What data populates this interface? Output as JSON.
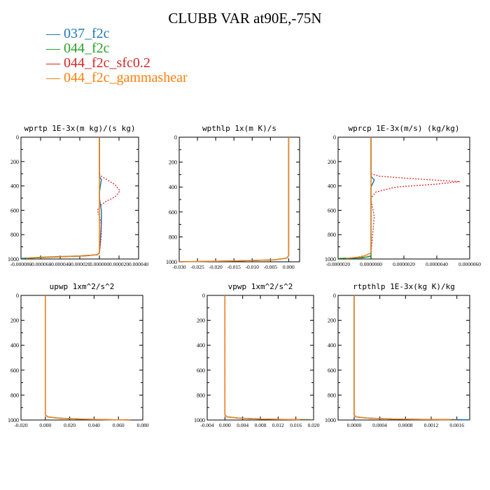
{
  "title": "CLUBB VAR at90E,-75N",
  "legend": [
    {
      "label": "037_f2c",
      "color": "#1f77b4"
    },
    {
      "label": "044_f2c",
      "color": "#2ca02c"
    },
    {
      "label": "044_f2c_sfc0.2",
      "color": "#d62728"
    },
    {
      "label": "044_f2c_gammashear",
      "color": "#ff7f0e"
    }
  ],
  "chart_data": [
    {
      "type": "line",
      "title": "wprtp  1E-3x(m kg)/(s kg)",
      "xlim": [
        -8e-05,
        4e-05
      ],
      "ylim": [
        1000,
        0
      ],
      "xticks": [
        "-0.000080",
        "-0.000060",
        "-0.000040",
        "-0.000020",
        "0.000000",
        "0.000020",
        "0.000040"
      ],
      "yticks": [
        "0",
        "200",
        "400",
        "600",
        "800",
        "1000"
      ],
      "series": [
        {
          "name": "037_f2c",
          "x": [
            0,
            0,
            0,
            2e-06,
            1e-06,
            0,
            0,
            2e-06,
            2e-06,
            1e-06,
            0,
            -2e-06,
            -1.5e-05,
            -5e-05,
            -8e-05
          ],
          "y": [
            0,
            300,
            320,
            350,
            400,
            450,
            500,
            600,
            700,
            850,
            950,
            965,
            975,
            985,
            995
          ]
        },
        {
          "name": "044_f2c",
          "x": [
            0,
            0,
            0,
            0,
            0,
            0,
            0,
            0,
            0,
            -2e-06,
            -2e-05,
            -6e-05,
            -7.8e-05
          ],
          "y": [
            0,
            300,
            350,
            400,
            500,
            600,
            700,
            850,
            950,
            965,
            975,
            985,
            995
          ]
        },
        {
          "name": "044_f2c_sfc0.2",
          "x": [
            0,
            0,
            2e-06,
            8e-06,
            1.6e-05,
            2.1e-05,
            1.6e-05,
            6e-06,
            0,
            -2e-06,
            0,
            2e-06,
            2e-06,
            1e-06,
            0,
            -3e-06,
            -2e-05,
            -6e-05
          ],
          "y": [
            0,
            300,
            320,
            350,
            390,
            440,
            490,
            530,
            570,
            600,
            650,
            720,
            800,
            880,
            950,
            965,
            975,
            990
          ]
        },
        {
          "name": "044_f2c_gammashear",
          "x": [
            0,
            0,
            0,
            0,
            0,
            0,
            0,
            -2e-06,
            -1.5e-05,
            -5e-05,
            -7.5e-05
          ],
          "y": [
            0,
            300,
            400,
            500,
            700,
            900,
            950,
            965,
            975,
            985,
            995
          ]
        }
      ]
    },
    {
      "type": "line",
      "title": "wpthlp  1x(m K)/s",
      "xlim": [
        -0.03,
        0.003
      ],
      "ylim": [
        1000,
        0
      ],
      "xticks": [
        "-0.030",
        "-0.025",
        "-0.020",
        "-0.015",
        "-0.010",
        "-0.005",
        "0.000"
      ],
      "yticks": [
        "0",
        "200",
        "400",
        "600",
        "800",
        "1000"
      ],
      "series": [
        {
          "name": "037_f2c",
          "x": [
            0,
            0,
            0,
            -0.0005,
            -0.004,
            -0.015,
            -0.03
          ],
          "y": [
            0,
            900,
            950,
            970,
            985,
            993,
            1000
          ]
        },
        {
          "name": "044_f2c",
          "x": [
            0,
            0,
            0,
            -0.0005,
            -0.004,
            -0.015,
            -0.03
          ],
          "y": [
            0,
            900,
            950,
            970,
            985,
            993,
            1000
          ]
        },
        {
          "name": "044_f2c_sfc0.2",
          "x": [
            0,
            0,
            0,
            -0.0005,
            -0.004,
            -0.015,
            -0.03
          ],
          "y": [
            0,
            900,
            950,
            970,
            985,
            993,
            1000
          ]
        },
        {
          "name": "044_f2c_gammashear",
          "x": [
            0,
            0,
            0,
            -0.0005,
            -0.004,
            -0.015,
            -0.03
          ],
          "y": [
            0,
            900,
            950,
            970,
            985,
            993,
            1000
          ]
        }
      ]
    },
    {
      "type": "line",
      "title": "wprcp  1E-3x(m/s) (kg/kg)",
      "xlim": [
        -2e-06,
        6e-06
      ],
      "ylim": [
        1000,
        0
      ],
      "xticks": [
        "-0.0000020",
        "0.0000000",
        "0.0000020",
        "0.0000040",
        "0.0000060"
      ],
      "yticks": [
        "0",
        "200",
        "400",
        "600",
        "800",
        "1000"
      ],
      "series": [
        {
          "name": "037_f2c",
          "x": [
            0,
            0,
            0,
            5e-08,
            2e-07,
            1e-07,
            0,
            0,
            0,
            0,
            -5e-07,
            -1.5e-06
          ],
          "y": [
            0,
            300,
            320,
            330,
            350,
            380,
            410,
            700,
            950,
            975,
            990,
            995
          ]
        },
        {
          "name": "044_f2c",
          "x": [
            0,
            0,
            0,
            0,
            -8e-07,
            -2e-06
          ],
          "y": [
            0,
            900,
            960,
            980,
            990,
            995
          ]
        },
        {
          "name": "044_f2c_sfc0.2",
          "x": [
            0,
            0,
            5e-07,
            2.5e-06,
            5.4e-06,
            4e-06,
            1.5e-06,
            3e-07,
            0,
            5e-08,
            2e-07,
            1e-07,
            0,
            -3e-07,
            -1e-06
          ],
          "y": [
            0,
            300,
            320,
            340,
            365,
            385,
            410,
            450,
            500,
            550,
            650,
            800,
            950,
            970,
            990
          ]
        },
        {
          "name": "044_f2c_gammashear",
          "x": [
            0,
            0,
            0,
            0,
            0,
            -5e-07,
            -1.5e-06
          ],
          "y": [
            0,
            300,
            400,
            700,
            950,
            980,
            995
          ]
        }
      ]
    },
    {
      "type": "line",
      "title": "upwp  1xm^2/s^2",
      "xlim": [
        -0.02,
        0.08
      ],
      "ylim": [
        1000,
        0
      ],
      "xticks": [
        "-0.020",
        "0.000",
        "0.020",
        "0.040",
        "0.060",
        "0.080"
      ],
      "yticks": [
        "0",
        "200",
        "400",
        "600",
        "800",
        "1000"
      ],
      "series": [
        {
          "name": "037_f2c",
          "x": [
            0,
            0,
            0,
            0.002,
            0.01,
            0.03,
            0.055,
            0.07
          ],
          "y": [
            0,
            900,
            960,
            975,
            985,
            993,
            998,
            1000
          ]
        },
        {
          "name": "044_f2c",
          "x": [
            0,
            0,
            0,
            0.002,
            0.01,
            0.03,
            0.055,
            0.07
          ],
          "y": [
            0,
            900,
            960,
            975,
            985,
            993,
            998,
            1000
          ]
        },
        {
          "name": "044_f2c_sfc0.2",
          "x": [
            0,
            0,
            0,
            0.002,
            0.01,
            0.03,
            0.055,
            0.07
          ],
          "y": [
            0,
            900,
            960,
            975,
            985,
            993,
            998,
            1000
          ]
        },
        {
          "name": "044_f2c_gammashear",
          "x": [
            0,
            0,
            0,
            0.002,
            0.01,
            0.03,
            0.055,
            0.07
          ],
          "y": [
            0,
            900,
            960,
            975,
            985,
            993,
            998,
            1000
          ]
        }
      ]
    },
    {
      "type": "line",
      "title": "vpwp  1xm^2/s^2",
      "xlim": [
        -0.004,
        0.02
      ],
      "ylim": [
        1000,
        0
      ],
      "xticks": [
        "-0.004",
        "0.000",
        "0.004",
        "0.008",
        "0.012",
        "0.016",
        "0.020"
      ],
      "yticks": [
        "0",
        "200",
        "400",
        "600",
        "800",
        "1000"
      ],
      "series": [
        {
          "name": "037_f2c",
          "x": [
            0,
            0,
            0,
            0.0005,
            0.003,
            0.008,
            0.014,
            0.02
          ],
          "y": [
            0,
            900,
            960,
            975,
            985,
            992,
            996,
            998
          ]
        },
        {
          "name": "044_f2c",
          "x": [
            0,
            0,
            0,
            0.0005,
            0.003,
            0.008,
            0.014,
            0.02
          ],
          "y": [
            0,
            900,
            960,
            975,
            985,
            992,
            996,
            998
          ]
        },
        {
          "name": "044_f2c_sfc0.2",
          "x": [
            0,
            0,
            0,
            0.0005,
            0.003,
            0.008,
            0.014,
            0.02
          ],
          "y": [
            0,
            900,
            960,
            975,
            985,
            992,
            996,
            998
          ]
        },
        {
          "name": "044_f2c_gammashear",
          "x": [
            0,
            0,
            0,
            0.0005,
            0.003,
            0.008,
            0.014,
            0.017
          ],
          "y": [
            0,
            900,
            960,
            975,
            985,
            992,
            996,
            998
          ]
        }
      ]
    },
    {
      "type": "line",
      "title": "rtpthlp  1E-3x(kg K)/kg",
      "xlim": [
        -0.00025,
        0.0018
      ],
      "ylim": [
        1000,
        0
      ],
      "xticks": [
        "0.0000",
        "0.0004",
        "0.0008",
        "0.0012",
        "0.0016"
      ],
      "yticks": [
        "0",
        "200",
        "400",
        "600",
        "800",
        "1000"
      ],
      "series": [
        {
          "name": "037_f2c",
          "x": [
            0,
            0,
            0,
            3e-05,
            0.0002,
            0.0006,
            0.0012,
            0.0018
          ],
          "y": [
            0,
            900,
            960,
            975,
            985,
            992,
            996,
            998
          ]
        },
        {
          "name": "044_f2c",
          "x": [
            0,
            0,
            0,
            3e-05,
            0.0002,
            0.0006,
            0.0012,
            0.0016
          ],
          "y": [
            0,
            900,
            960,
            975,
            985,
            992,
            996,
            998
          ]
        },
        {
          "name": "044_f2c_sfc0.2",
          "x": [
            0,
            0,
            0,
            3e-05,
            0.0002,
            0.0006,
            0.0012,
            0.0016
          ],
          "y": [
            0,
            900,
            960,
            975,
            985,
            992,
            996,
            998
          ]
        },
        {
          "name": "044_f2c_gammashear",
          "x": [
            0,
            0,
            0,
            3e-05,
            0.0002,
            0.0006,
            0.0011,
            0.0015
          ],
          "y": [
            0,
            900,
            960,
            975,
            985,
            992,
            996,
            998
          ]
        }
      ]
    }
  ]
}
